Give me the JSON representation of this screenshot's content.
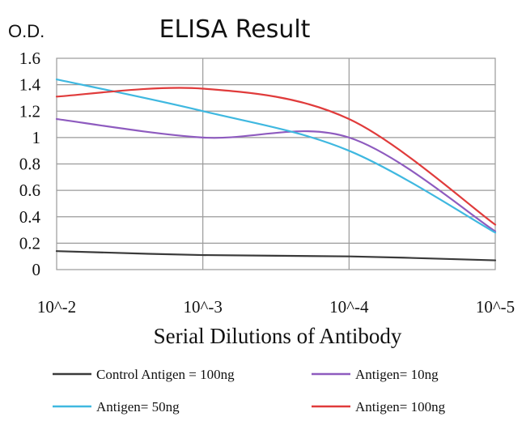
{
  "chart_data": {
    "type": "line",
    "title": "ELISA Result",
    "ylabel": "O.D.",
    "xlabel": "Serial Dilutions of Antibody",
    "x_tick_labels": [
      "10^-2",
      "10^-3",
      "10^-4",
      "10^-5"
    ],
    "x": [
      -2,
      -3,
      -4,
      -5
    ],
    "ylim": [
      0,
      1.6
    ],
    "y_ticks": [
      0,
      0.2,
      0.4,
      0.6,
      0.8,
      1,
      1.2,
      1.4,
      1.6
    ],
    "y_tick_labels": [
      "0",
      "0.2",
      "0.4",
      "0.6",
      "0.8",
      "1",
      "1.2",
      "1.4",
      "1.6"
    ],
    "grid": "vertical-and-horizontal",
    "legend_position": "bottom",
    "series": [
      {
        "name": "Control Antigen = 100ng",
        "color": "#3a3a3a",
        "values": [
          0.14,
          0.11,
          0.1,
          0.07
        ]
      },
      {
        "name": "Antigen= 10ng",
        "color": "#8e5bbf",
        "values": [
          1.14,
          1.0,
          1.0,
          0.29
        ]
      },
      {
        "name": "Antigen= 50ng",
        "color": "#3fb8e0",
        "values": [
          1.44,
          1.2,
          0.9,
          0.28
        ]
      },
      {
        "name": "Antigen= 100ng",
        "color": "#e03b3b",
        "values": [
          1.31,
          1.37,
          1.14,
          0.34
        ]
      }
    ]
  }
}
